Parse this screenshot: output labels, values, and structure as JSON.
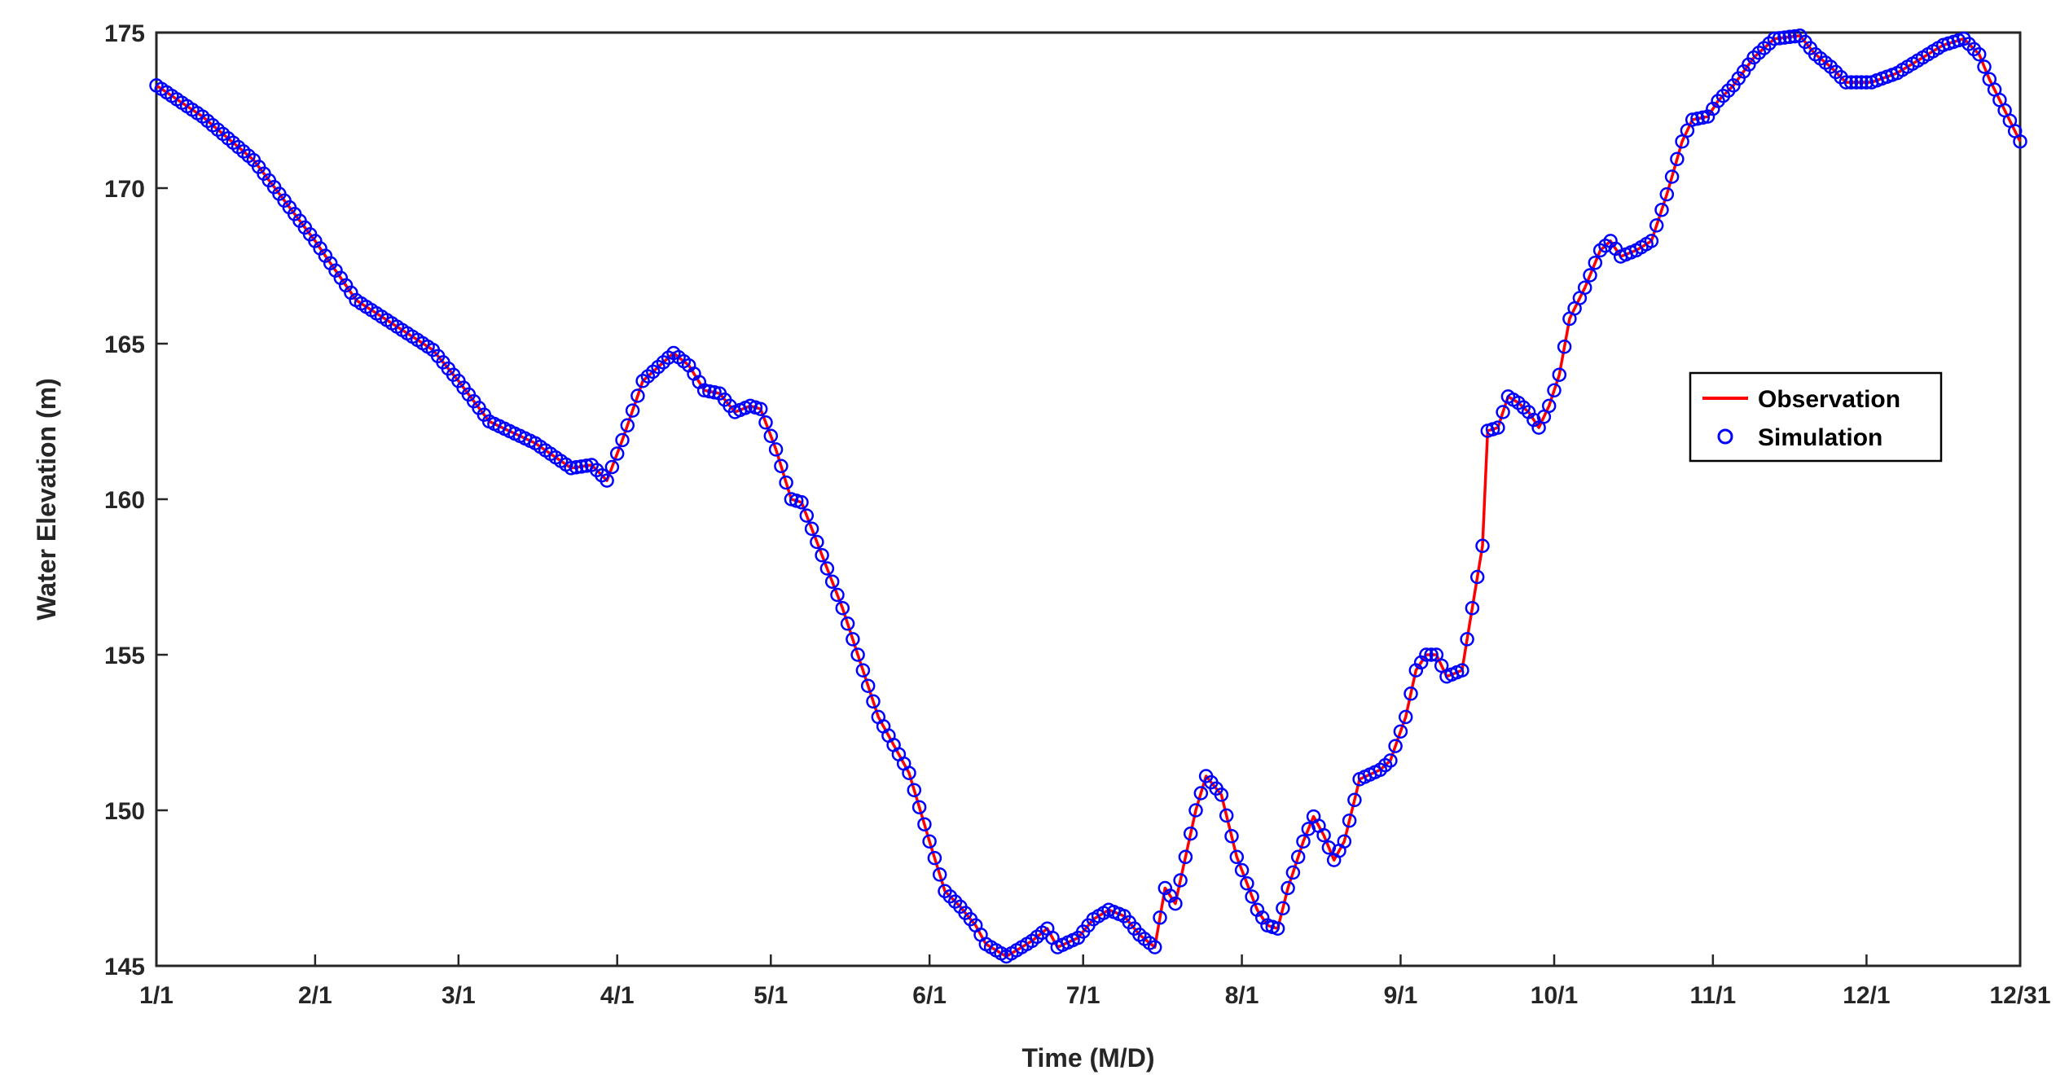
{
  "chart_data": {
    "type": "line",
    "title": "",
    "xlabel": "Time (M/D)",
    "ylabel": "Water Elevation (m)",
    "x_ticks": [
      {
        "day": 1,
        "label": "1/1"
      },
      {
        "day": 32,
        "label": "2/1"
      },
      {
        "day": 60,
        "label": "3/1"
      },
      {
        "day": 91,
        "label": "4/1"
      },
      {
        "day": 121,
        "label": "5/1"
      },
      {
        "day": 152,
        "label": "6/1"
      },
      {
        "day": 182,
        "label": "7/1"
      },
      {
        "day": 213,
        "label": "8/1"
      },
      {
        "day": 244,
        "label": "9/1"
      },
      {
        "day": 274,
        "label": "10/1"
      },
      {
        "day": 305,
        "label": "11/1"
      },
      {
        "day": 335,
        "label": "12/1"
      },
      {
        "day": 365,
        "label": "12/31"
      }
    ],
    "xlim": [
      1,
      365
    ],
    "ylim": [
      145,
      175
    ],
    "y_ticks": [
      "145",
      "150",
      "155",
      "160",
      "165",
      "170",
      "175"
    ],
    "grid": false,
    "legend": {
      "position": "right-middle",
      "entries": [
        "Observation",
        "Simulation"
      ]
    },
    "series_style": {
      "Observation": {
        "color": "#ff0000",
        "marker": "line"
      },
      "Simulation": {
        "color": "#0000ff",
        "marker": "open-circle"
      }
    },
    "control_points": [
      [
        1,
        173.3
      ],
      [
        10,
        172.3
      ],
      [
        20,
        170.9
      ],
      [
        32,
        168.3
      ],
      [
        40,
        166.4
      ],
      [
        55,
        164.8
      ],
      [
        60,
        163.8
      ],
      [
        66,
        162.5
      ],
      [
        75,
        161.8
      ],
      [
        82,
        161.0
      ],
      [
        86,
        161.1
      ],
      [
        89,
        160.6
      ],
      [
        92,
        161.9
      ],
      [
        96,
        163.8
      ],
      [
        100,
        164.4
      ],
      [
        102,
        164.7
      ],
      [
        105,
        164.3
      ],
      [
        108,
        163.5
      ],
      [
        111,
        163.4
      ],
      [
        114,
        162.8
      ],
      [
        117,
        163.0
      ],
      [
        119,
        162.9
      ],
      [
        122,
        161.6
      ],
      [
        125,
        160.0
      ],
      [
        127,
        159.9
      ],
      [
        135,
        156.5
      ],
      [
        142,
        153.0
      ],
      [
        148,
        151.2
      ],
      [
        152,
        149.0
      ],
      [
        155,
        147.4
      ],
      [
        158,
        146.9
      ],
      [
        161,
        146.3
      ],
      [
        163,
        145.7
      ],
      [
        167,
        145.3
      ],
      [
        172,
        145.8
      ],
      [
        175,
        146.2
      ],
      [
        177,
        145.6
      ],
      [
        181,
        145.9
      ],
      [
        184,
        146.5
      ],
      [
        187,
        146.8
      ],
      [
        190,
        146.6
      ],
      [
        193,
        146.0
      ],
      [
        196,
        145.6
      ],
      [
        198,
        147.5
      ],
      [
        200,
        147.0
      ],
      [
        202,
        148.5
      ],
      [
        204,
        150.0
      ],
      [
        206,
        151.1
      ],
      [
        209,
        150.5
      ],
      [
        212,
        148.5
      ],
      [
        216,
        146.8
      ],
      [
        218,
        146.3
      ],
      [
        220,
        146.2
      ],
      [
        222,
        147.5
      ],
      [
        225,
        149.0
      ],
      [
        227,
        149.8
      ],
      [
        229,
        149.2
      ],
      [
        231,
        148.4
      ],
      [
        233,
        149.0
      ],
      [
        236,
        151.0
      ],
      [
        240,
        151.3
      ],
      [
        242,
        151.6
      ],
      [
        245,
        153.0
      ],
      [
        247,
        154.5
      ],
      [
        249,
        155.0
      ],
      [
        251,
        155.0
      ],
      [
        253,
        154.3
      ],
      [
        256,
        154.5
      ],
      [
        258,
        156.5
      ],
      [
        260,
        158.5
      ],
      [
        261,
        162.2
      ],
      [
        263,
        162.3
      ],
      [
        265,
        163.3
      ],
      [
        267,
        163.1
      ],
      [
        269,
        162.8
      ],
      [
        271,
        162.3
      ],
      [
        273,
        163.0
      ],
      [
        275,
        164.0
      ],
      [
        277,
        165.8
      ],
      [
        280,
        166.8
      ],
      [
        283,
        168.0
      ],
      [
        285,
        168.3
      ],
      [
        287,
        167.8
      ],
      [
        290,
        168.0
      ],
      [
        293,
        168.3
      ],
      [
        296,
        169.8
      ],
      [
        299,
        171.5
      ],
      [
        301,
        172.2
      ],
      [
        304,
        172.3
      ],
      [
        306,
        172.8
      ],
      [
        309,
        173.3
      ],
      [
        313,
        174.2
      ],
      [
        317,
        174.8
      ],
      [
        322,
        174.9
      ],
      [
        325,
        174.3
      ],
      [
        328,
        173.9
      ],
      [
        331,
        173.4
      ],
      [
        336,
        173.4
      ],
      [
        341,
        173.7
      ],
      [
        346,
        174.2
      ],
      [
        350,
        174.6
      ],
      [
        354,
        174.8
      ],
      [
        357,
        174.3
      ],
      [
        359,
        173.5
      ],
      [
        365,
        171.5
      ]
    ]
  }
}
